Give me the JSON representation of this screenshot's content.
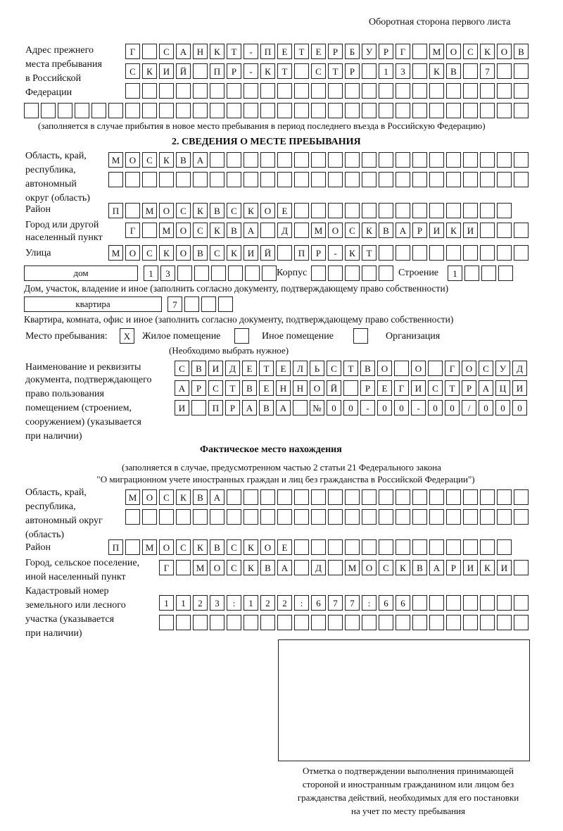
{
  "header": {
    "side_title": "Оборотная сторона первого листа"
  },
  "prev_address": {
    "label": [
      "Адрес прежнего",
      "места пребывания",
      "в Российской",
      "Федерации"
    ],
    "rows": [
      [
        "Г",
        " ",
        "С",
        "А",
        "Н",
        "К",
        "Т",
        "-",
        "П",
        "Е",
        "Т",
        "Е",
        "Р",
        "Б",
        "У",
        "Р",
        "Г",
        " ",
        "М",
        "О",
        "С",
        "К",
        "О",
        "В"
      ],
      [
        "С",
        "К",
        "И",
        "Й",
        " ",
        "П",
        "Р",
        "-",
        "К",
        "Т",
        " ",
        "С",
        "Т",
        "Р",
        " ",
        "1",
        "3",
        " ",
        "К",
        "В",
        " ",
        "7",
        " ",
        " "
      ],
      [
        " ",
        " ",
        " ",
        " ",
        " ",
        " ",
        " ",
        " ",
        " ",
        " ",
        " ",
        " ",
        " ",
        " ",
        " ",
        " ",
        " ",
        " ",
        " ",
        " ",
        " ",
        " ",
        " ",
        " "
      ],
      [
        " ",
        " ",
        " ",
        " ",
        " ",
        " ",
        " ",
        " ",
        " ",
        " ",
        " ",
        " ",
        " ",
        " ",
        " ",
        " ",
        " ",
        " ",
        " ",
        " ",
        " ",
        " ",
        " ",
        " ",
        " ",
        " ",
        " ",
        " ",
        " ",
        " "
      ]
    ],
    "note": "(заполняется в случае прибытия в новое место пребывания в период последнего въезда в Российскую Федерацию)"
  },
  "section2": {
    "heading": "2. СВЕДЕНИЯ О МЕСТЕ ПРЕБЫВАНИЯ",
    "region_label": [
      "Область, край,",
      "республика,",
      "автономный",
      "округ (область)"
    ],
    "region_rows": [
      [
        "М",
        "О",
        "С",
        "К",
        "В",
        "А",
        " ",
        " ",
        " ",
        " ",
        " ",
        " ",
        " ",
        " ",
        " ",
        " ",
        " ",
        " ",
        " ",
        " ",
        " ",
        " ",
        " ",
        " ",
        " "
      ],
      [
        " ",
        " ",
        " ",
        " ",
        " ",
        " ",
        " ",
        " ",
        " ",
        " ",
        " ",
        " ",
        " ",
        " ",
        " ",
        " ",
        " ",
        " ",
        " ",
        " ",
        " ",
        " ",
        " ",
        " ",
        " "
      ]
    ],
    "district_label": "Район",
    "district_row": [
      "П",
      " ",
      "М",
      "О",
      "С",
      "К",
      "В",
      "С",
      "К",
      "О",
      "Е",
      " ",
      " ",
      " ",
      " ",
      " ",
      " ",
      " ",
      " ",
      " ",
      " ",
      " ",
      " ",
      " "
    ],
    "city_label": [
      "Город или другой",
      "населенный пункт"
    ],
    "city_row": [
      "Г",
      " ",
      "М",
      "О",
      "С",
      "К",
      "В",
      "А",
      " ",
      "Д",
      " ",
      "М",
      "О",
      "С",
      "К",
      "В",
      "А",
      "Р",
      "И",
      "К",
      "И",
      " ",
      " ",
      " "
    ],
    "street_label": "Улица",
    "street_row": [
      "М",
      "О",
      "С",
      "К",
      "О",
      "В",
      "С",
      "К",
      "И",
      "Й",
      " ",
      "П",
      "Р",
      "-",
      "К",
      "Т",
      " ",
      " ",
      " ",
      " ",
      " ",
      " ",
      " ",
      " ",
      " "
    ],
    "house_type": "дом",
    "house_cells": [
      "1",
      "3",
      " ",
      " ",
      " ",
      " ",
      " ",
      " "
    ],
    "korpus_label": "Корпус",
    "korpus_cells": [
      " ",
      " ",
      " ",
      " ",
      " "
    ],
    "building_label": "Строение",
    "building_cells": [
      "1",
      " ",
      " ",
      " "
    ],
    "house_note": "Дом, участок, владение и иное (заполнить согласно документу, подтверждающему право собственности)",
    "flat_type": "квартира",
    "flat_cells": [
      "7",
      " ",
      " ",
      " "
    ],
    "flat_note": "Квартира, комната, офис и иное (заполнить согласно документу, подтверждающему право собственности)",
    "stay_label": "Место пребывания:",
    "stay_options": [
      {
        "label": "Жилое помещение",
        "mark": "X"
      },
      {
        "label": "Иное помещение",
        "mark": ""
      },
      {
        "label": "Организация",
        "mark": ""
      }
    ],
    "stay_hint": "(Необходимо выбрать нужное)",
    "doc_label": [
      "Наименование и реквизиты",
      "документа, подтверждающего",
      "право пользования",
      "помещением (строением,",
      "сооружением) (указывается",
      "при наличии)"
    ],
    "doc_rows": [
      [
        "С",
        "В",
        "И",
        "Д",
        "Е",
        "Т",
        "Е",
        "Л",
        "Ь",
        "С",
        "Т",
        "В",
        "О",
        " ",
        "О",
        " ",
        "Г",
        "О",
        "С",
        "У",
        "Д"
      ],
      [
        "А",
        "Р",
        "С",
        "Т",
        "В",
        "Е",
        "Н",
        "Н",
        "О",
        "Й",
        " ",
        "Р",
        "Е",
        "Г",
        "И",
        "С",
        "Т",
        "Р",
        "А",
        "Ц",
        "И"
      ],
      [
        "И",
        " ",
        "П",
        "Р",
        "А",
        "В",
        "А",
        " ",
        "№",
        "0",
        "0",
        "-",
        "0",
        "0",
        "-",
        "0",
        "0",
        "/",
        "0",
        "0",
        "0"
      ]
    ]
  },
  "actual": {
    "heading": "Фактическое место нахождения",
    "note": [
      "(заполняется в случае, предусмотренном частью 2 статьи 21 Федерального закона",
      "\"О миграционном учете иностранных граждан и лиц без гражданства в Российской Федерации\")"
    ],
    "region_label": [
      "Область, край,",
      "республика,",
      "автономный округ",
      "(область)"
    ],
    "region_rows": [
      [
        "М",
        "О",
        "С",
        "К",
        "В",
        "А",
        " ",
        " ",
        " ",
        " ",
        " ",
        " ",
        " ",
        " ",
        " ",
        " ",
        " ",
        " ",
        " ",
        " ",
        " ",
        " ",
        " ",
        " "
      ],
      [
        " ",
        " ",
        " ",
        " ",
        " ",
        " ",
        " ",
        " ",
        " ",
        " ",
        " ",
        " ",
        " ",
        " ",
        " ",
        " ",
        " ",
        " ",
        " ",
        " ",
        " ",
        " ",
        " ",
        " "
      ]
    ],
    "district_label": "Район",
    "district_row": [
      "П",
      " ",
      "М",
      "О",
      "С",
      "К",
      "В",
      "С",
      "К",
      "О",
      "Е",
      " ",
      " ",
      " ",
      " ",
      " ",
      " ",
      " ",
      " ",
      " ",
      " ",
      " ",
      " ",
      " "
    ],
    "city_label": [
      "Город, сельское поселение,",
      "иной населенный пункт"
    ],
    "city_row": [
      "Г",
      " ",
      "М",
      "О",
      "С",
      "К",
      "В",
      "А",
      " ",
      "Д",
      " ",
      "М",
      "О",
      "С",
      "К",
      "В",
      "А",
      "Р",
      "И",
      "К",
      "И",
      " "
    ],
    "cadastre_label": [
      "Кадастровый номер",
      "земельного или лесного",
      "участка (указывается",
      "при наличии)"
    ],
    "cadastre_rows": [
      [
        "1",
        "1",
        "2",
        "3",
        ":",
        "1",
        "2",
        "2",
        ":",
        "6",
        "7",
        "7",
        ":",
        "6",
        "6",
        " ",
        " ",
        " ",
        " ",
        " ",
        " ",
        " "
      ],
      [
        " ",
        " ",
        " ",
        " ",
        " ",
        " ",
        " ",
        " ",
        " ",
        " ",
        " ",
        " ",
        " ",
        " ",
        " ",
        " ",
        " ",
        " ",
        " ",
        " ",
        " ",
        " "
      ]
    ],
    "stamp_caption": [
      "Отметка о подтверждении выполнения принимающей",
      "стороной и иностранным гражданином или лицом без",
      "гражданства действий, необходимых для его постановки",
      "на учет по месту пребывания"
    ]
  }
}
